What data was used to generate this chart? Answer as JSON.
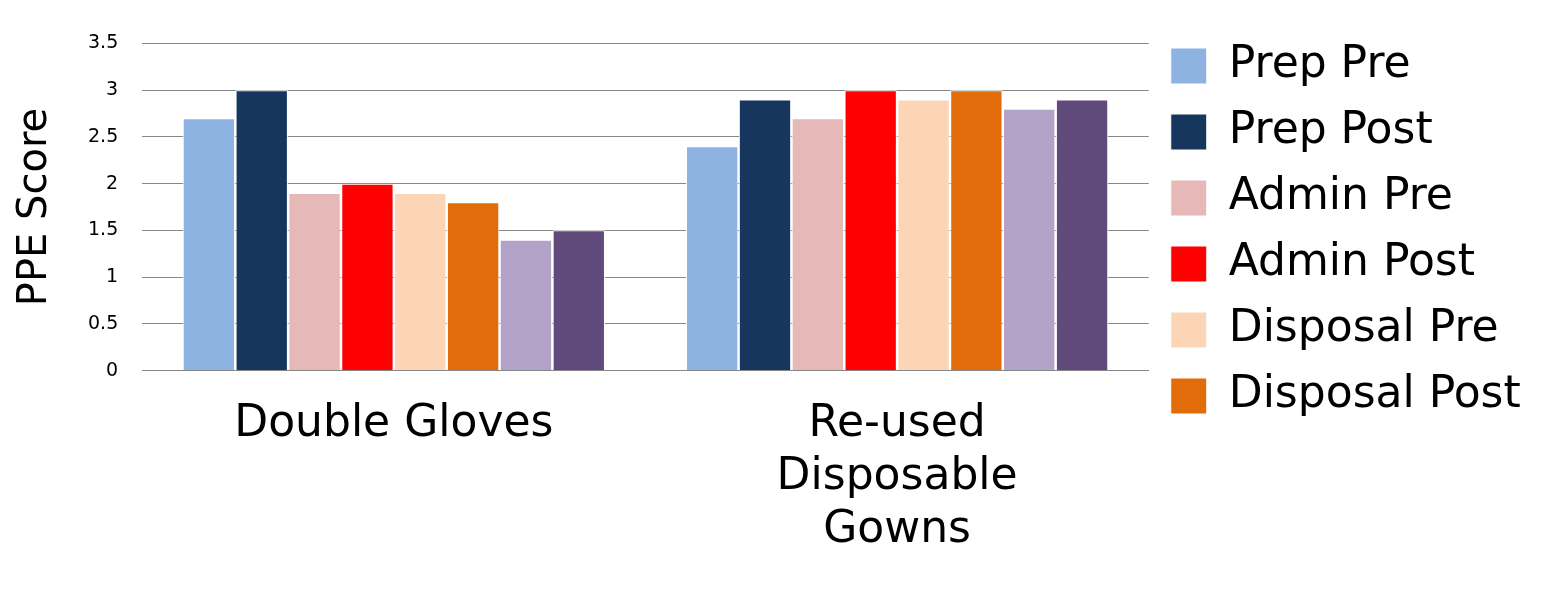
{
  "chart_data": {
    "type": "bar",
    "ylabel": "PPE Score",
    "categories": [
      "Double Gloves",
      "Re-used Disposable Gowns"
    ],
    "series": [
      {
        "name": "Prep Pre",
        "color": "#8eb3e3",
        "values": [
          2.7,
          2.4
        ]
      },
      {
        "name": "Prep Post",
        "color": "#17365d",
        "values": [
          3.0,
          2.9
        ]
      },
      {
        "name": "Admin Pre",
        "color": "#e6b8b7",
        "values": [
          1.9,
          2.7
        ]
      },
      {
        "name": "Admin Post",
        "color": "#ff0000",
        "values": [
          2.0,
          3.0
        ]
      },
      {
        "name": "Disposal Pre",
        "color": "#fbd5b5",
        "values": [
          1.9,
          2.9
        ]
      },
      {
        "name": "Disposal Post",
        "color": "#e36c0a",
        "values": [
          1.8,
          3.0
        ]
      },
      {
        "color": "#b2a2c7",
        "values": [
          1.4,
          2.8
        ]
      },
      {
        "color": "#604a7b",
        "values": [
          1.5,
          2.9
        ]
      }
    ],
    "ylim": [
      0,
      3.5
    ],
    "yticks": [
      0,
      0.5,
      1,
      1.5,
      2,
      2.5,
      3,
      3.5
    ],
    "grid": "y",
    "legend": "right"
  }
}
